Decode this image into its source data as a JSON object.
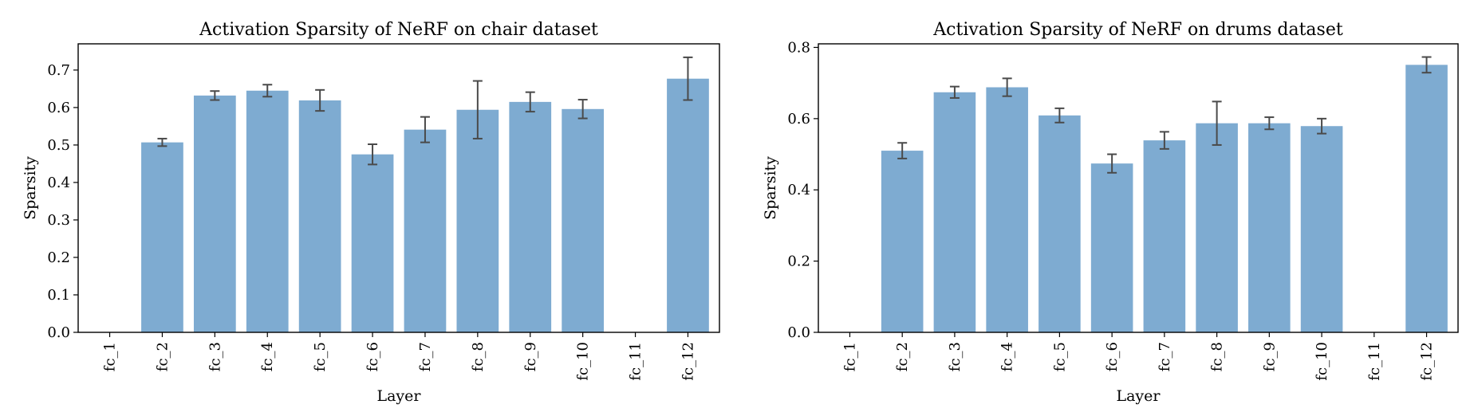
{
  "chart_data": [
    {
      "type": "bar",
      "title": "Activation Sparsity of NeRF on chair dataset",
      "xlabel": "Layer",
      "ylabel": "Sparsity",
      "categories": [
        "fc_1",
        "fc_2",
        "fc_3",
        "fc_4",
        "fc_5",
        "fc_6",
        "fc_7",
        "fc_8",
        "fc_9",
        "fc_10",
        "fc_11",
        "fc_12"
      ],
      "values": [
        0,
        0.507,
        0.632,
        0.645,
        0.619,
        0.475,
        0.541,
        0.594,
        0.615,
        0.596,
        0,
        0.677
      ],
      "errors": [
        0,
        0.01,
        0.012,
        0.016,
        0.028,
        0.027,
        0.034,
        0.077,
        0.026,
        0.025,
        0,
        0.057
      ],
      "ylim": [
        0,
        0.77
      ],
      "yticks": [
        "0.0",
        "0.1",
        "0.2",
        "0.3",
        "0.4",
        "0.5",
        "0.6",
        "0.7"
      ],
      "ytick_values": [
        0,
        0.1,
        0.2,
        0.3,
        0.4,
        0.5,
        0.6,
        0.7
      ],
      "bar_color": "#7eabd1",
      "error_color": "#4a4a4a",
      "grid": false
    },
    {
      "type": "bar",
      "title": "Activation Sparsity of NeRF on drums dataset",
      "xlabel": "Layer",
      "ylabel": "Sparsity",
      "categories": [
        "fc_1",
        "fc_2",
        "fc_3",
        "fc_4",
        "fc_5",
        "fc_6",
        "fc_7",
        "fc_8",
        "fc_9",
        "fc_10",
        "fc_11",
        "fc_12"
      ],
      "values": [
        0,
        0.51,
        0.674,
        0.688,
        0.609,
        0.474,
        0.539,
        0.587,
        0.587,
        0.579,
        0,
        0.751
      ],
      "errors": [
        0,
        0.022,
        0.016,
        0.025,
        0.02,
        0.026,
        0.024,
        0.061,
        0.017,
        0.021,
        0,
        0.022
      ],
      "ylim": [
        0,
        0.81
      ],
      "yticks": [
        "0.0",
        "0.2",
        "0.4",
        "0.6",
        "0.8"
      ],
      "ytick_values": [
        0,
        0.2,
        0.4,
        0.6,
        0.8
      ],
      "bar_color": "#7eabd1",
      "error_color": "#4a4a4a",
      "grid": false
    }
  ]
}
